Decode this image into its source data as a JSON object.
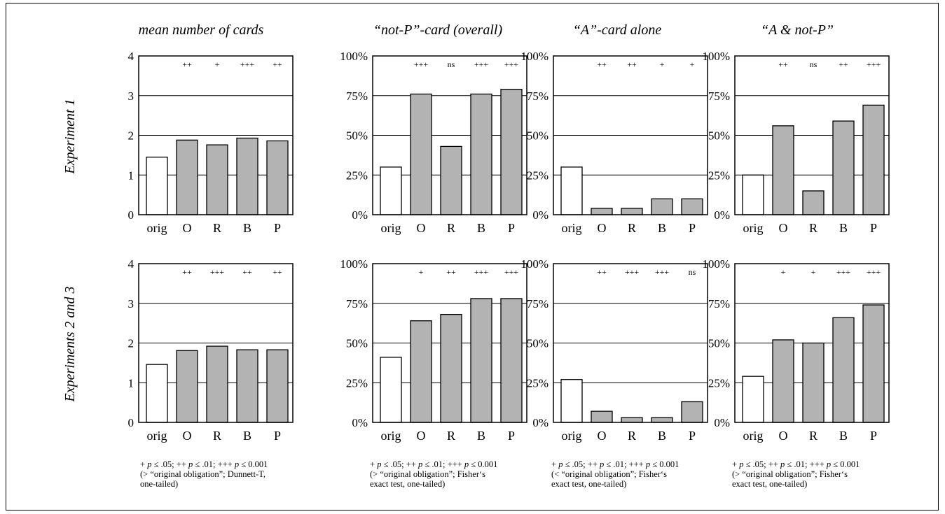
{
  "figure": {
    "column_titles": [
      "mean number of cards",
      "“not-P”-card (overall)",
      "“A”-card alone",
      "“A & not-P”"
    ],
    "row_labels": [
      "Experiment 1",
      "Experiments 2 and 3"
    ],
    "footnotes": [
      {
        "line1": "+ p ≤ .05; ++ p ≤ .01; +++ p ≤ 0.001",
        "rest": "(> “original obligation”; Dunnett-T,\none-tailed)"
      },
      {
        "line1": "+ p ≤ .05; ++ p ≤ .01; +++ p ≤ 0.001",
        "rest": "(> “original obligation”; Fisher‘s\nexact test, one-tailed)"
      },
      {
        "line1": "+ p ≤ .05; ++ p ≤ .01; +++ p ≤ 0.001",
        "rest": "(< “original obligation”; Fisher‘s\nexact test, one-tailed)"
      },
      {
        "line1": "+ p ≤ .05; ++ p ≤ .01; +++ p ≤ 0.001",
        "rest": "(> “original obligation”; Fisher‘s\nexact test, one-tailed)"
      }
    ]
  },
  "chart_data": [
    {
      "type": "bar",
      "row": 0,
      "col": 0,
      "categories": [
        "orig",
        "O",
        "R",
        "B",
        "P"
      ],
      "values": [
        1.45,
        1.88,
        1.76,
        1.93,
        1.86
      ],
      "significance": [
        "",
        "++",
        "+",
        "+++",
        "++"
      ],
      "ylim": [
        0,
        4
      ],
      "yticks": [
        "0",
        "1",
        "2",
        "3",
        "4"
      ],
      "grid": true,
      "baseline_bar": "orig",
      "colors": {
        "baseline": "#ffffff",
        "treatment": "#b3b3b3"
      }
    },
    {
      "type": "bar",
      "row": 0,
      "col": 1,
      "categories": [
        "orig",
        "O",
        "R",
        "B",
        "P"
      ],
      "values": [
        30,
        76,
        43,
        76,
        79
      ],
      "significance": [
        "",
        "+++",
        "ns",
        "+++",
        "+++"
      ],
      "ylim": [
        0,
        100
      ],
      "yticks": [
        "0%",
        "25%",
        "50%",
        "75%",
        "100%"
      ],
      "grid": true,
      "baseline_bar": "orig",
      "colors": {
        "baseline": "#ffffff",
        "treatment": "#b3b3b3"
      }
    },
    {
      "type": "bar",
      "row": 0,
      "col": 2,
      "categories": [
        "orig",
        "O",
        "R",
        "B",
        "P"
      ],
      "values": [
        30,
        4,
        4,
        10,
        10
      ],
      "significance": [
        "",
        "++",
        "++",
        "+",
        "+"
      ],
      "ylim": [
        0,
        100
      ],
      "yticks": [
        "0%",
        "25%",
        "50%",
        "75%",
        "100%"
      ],
      "grid": true,
      "baseline_bar": "orig",
      "colors": {
        "baseline": "#ffffff",
        "treatment": "#b3b3b3"
      }
    },
    {
      "type": "bar",
      "row": 0,
      "col": 3,
      "categories": [
        "orig",
        "O",
        "R",
        "B",
        "P"
      ],
      "values": [
        25,
        56,
        15,
        59,
        69
      ],
      "significance": [
        "",
        "++",
        "ns",
        "++",
        "+++"
      ],
      "ylim": [
        0,
        100
      ],
      "yticks": [
        "0%",
        "25%",
        "50%",
        "75%",
        "100%"
      ],
      "grid": true,
      "baseline_bar": "orig",
      "colors": {
        "baseline": "#ffffff",
        "treatment": "#b3b3b3"
      }
    },
    {
      "type": "bar",
      "row": 1,
      "col": 0,
      "categories": [
        "orig",
        "O",
        "R",
        "B",
        "P"
      ],
      "values": [
        1.46,
        1.81,
        1.92,
        1.83,
        1.83
      ],
      "significance": [
        "",
        "++",
        "+++",
        "++",
        "++"
      ],
      "ylim": [
        0,
        4
      ],
      "yticks": [
        "0",
        "1",
        "2",
        "3",
        "4"
      ],
      "grid": true,
      "baseline_bar": "orig",
      "colors": {
        "baseline": "#ffffff",
        "treatment": "#b3b3b3"
      }
    },
    {
      "type": "bar",
      "row": 1,
      "col": 1,
      "categories": [
        "orig",
        "O",
        "R",
        "B",
        "P"
      ],
      "values": [
        41,
        64,
        68,
        78,
        78
      ],
      "significance": [
        "",
        "+",
        "++",
        "+++",
        "+++"
      ],
      "ylim": [
        0,
        100
      ],
      "yticks": [
        "0%",
        "25%",
        "50%",
        "75%",
        "100%"
      ],
      "grid": true,
      "baseline_bar": "orig",
      "colors": {
        "baseline": "#ffffff",
        "treatment": "#b3b3b3"
      }
    },
    {
      "type": "bar",
      "row": 1,
      "col": 2,
      "categories": [
        "orig",
        "O",
        "R",
        "B",
        "P"
      ],
      "values": [
        27,
        7,
        3,
        3,
        13
      ],
      "significance": [
        "",
        "++",
        "+++",
        "+++",
        "ns"
      ],
      "ylim": [
        0,
        100
      ],
      "yticks": [
        "0%",
        "25%",
        "50%",
        "75%",
        "100%"
      ],
      "grid": true,
      "baseline_bar": "orig",
      "colors": {
        "baseline": "#ffffff",
        "treatment": "#b3b3b3"
      }
    },
    {
      "type": "bar",
      "row": 1,
      "col": 3,
      "categories": [
        "orig",
        "O",
        "R",
        "B",
        "P"
      ],
      "values": [
        29,
        52,
        50,
        66,
        74
      ],
      "significance": [
        "",
        "+",
        "+",
        "+++",
        "+++"
      ],
      "ylim": [
        0,
        100
      ],
      "yticks": [
        "0%",
        "25%",
        "50%",
        "75%",
        "100%"
      ],
      "grid": true,
      "baseline_bar": "orig",
      "colors": {
        "baseline": "#ffffff",
        "treatment": "#b3b3b3"
      }
    }
  ]
}
